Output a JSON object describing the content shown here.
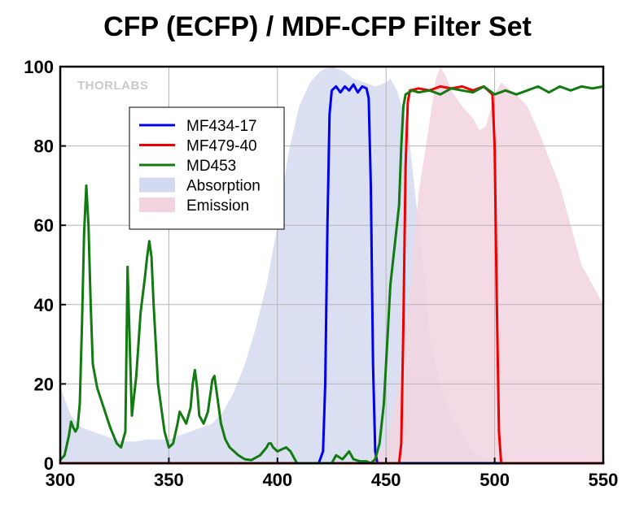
{
  "chart_data": {
    "type": "area",
    "title": "CFP (ECFP) / MDF-CFP Filter Set",
    "watermark": "THORLABS",
    "xlabel": "",
    "ylabel": "",
    "xlim": [
      300,
      550
    ],
    "ylim": [
      0,
      100
    ],
    "x_ticks": [
      300,
      350,
      400,
      450,
      500,
      550
    ],
    "y_ticks": [
      0,
      20,
      40,
      60,
      80,
      100
    ],
    "grid": true,
    "legend_position": "upper-left",
    "series": [
      {
        "name": "MF434-17",
        "kind": "line",
        "color": "#0000ee",
        "points": [
          [
            300,
            0
          ],
          [
            419,
            0
          ],
          [
            421,
            3
          ],
          [
            422,
            20
          ],
          [
            423,
            60
          ],
          [
            424,
            88
          ],
          [
            425,
            94
          ],
          [
            427,
            95
          ],
          [
            429,
            93.5
          ],
          [
            431,
            95
          ],
          [
            433,
            94
          ],
          [
            435,
            95.5
          ],
          [
            437,
            93.5
          ],
          [
            439,
            95
          ],
          [
            441,
            94.5
          ],
          [
            442,
            92
          ],
          [
            443,
            70
          ],
          [
            444,
            25
          ],
          [
            445,
            3
          ],
          [
            446,
            0
          ],
          [
            550,
            0
          ]
        ]
      },
      {
        "name": "MF479-40",
        "kind": "line",
        "color": "#ee0000",
        "points": [
          [
            300,
            0
          ],
          [
            456,
            0
          ],
          [
            457,
            5
          ],
          [
            458,
            35
          ],
          [
            459,
            75
          ],
          [
            460,
            91
          ],
          [
            461,
            94
          ],
          [
            465,
            94.5
          ],
          [
            470,
            94
          ],
          [
            475,
            95
          ],
          [
            480,
            94.5
          ],
          [
            485,
            95
          ],
          [
            490,
            94
          ],
          [
            495,
            95
          ],
          [
            499,
            93
          ],
          [
            500,
            80
          ],
          [
            501,
            40
          ],
          [
            502,
            8
          ],
          [
            503,
            0
          ],
          [
            550,
            0
          ]
        ]
      },
      {
        "name": "MD453",
        "kind": "line",
        "color": "#117a11",
        "points": [
          [
            300,
            0.8
          ],
          [
            302,
            2
          ],
          [
            304,
            7
          ],
          [
            305,
            10.5
          ],
          [
            306,
            9
          ],
          [
            307,
            8
          ],
          [
            308,
            9
          ],
          [
            309,
            15
          ],
          [
            310,
            35
          ],
          [
            311,
            58
          ],
          [
            312,
            70
          ],
          [
            313,
            60
          ],
          [
            314,
            40
          ],
          [
            315,
            25
          ],
          [
            317,
            19
          ],
          [
            320,
            14
          ],
          [
            323,
            9
          ],
          [
            326,
            5
          ],
          [
            328,
            4
          ],
          [
            330,
            8
          ],
          [
            331,
            49.5
          ],
          [
            332,
            30
          ],
          [
            333,
            12
          ],
          [
            335,
            22
          ],
          [
            337,
            38
          ],
          [
            339,
            47
          ],
          [
            340,
            52
          ],
          [
            341,
            56
          ],
          [
            342,
            52
          ],
          [
            343,
            40
          ],
          [
            345,
            20
          ],
          [
            348,
            8
          ],
          [
            350,
            4
          ],
          [
            352,
            5
          ],
          [
            354,
            10
          ],
          [
            355,
            13
          ],
          [
            356,
            12
          ],
          [
            358,
            10
          ],
          [
            360,
            14
          ],
          [
            361,
            20
          ],
          [
            362,
            23.5
          ],
          [
            363,
            19
          ],
          [
            364,
            12
          ],
          [
            366,
            10
          ],
          [
            368,
            13
          ],
          [
            370,
            21
          ],
          [
            371,
            22
          ],
          [
            372,
            18
          ],
          [
            374,
            10
          ],
          [
            376,
            6
          ],
          [
            378,
            4
          ],
          [
            382,
            2
          ],
          [
            385,
            1
          ],
          [
            388,
            0.8
          ],
          [
            392,
            2
          ],
          [
            395,
            4
          ],
          [
            396,
            5
          ],
          [
            397,
            5
          ],
          [
            398,
            4
          ],
          [
            400,
            3
          ],
          [
            402,
            3.5
          ],
          [
            404,
            4
          ],
          [
            406,
            3
          ],
          [
            408,
            1
          ],
          [
            409,
            0
          ],
          [
            425,
            0
          ],
          [
            427,
            2
          ],
          [
            430,
            1
          ],
          [
            433,
            3
          ],
          [
            435,
            1
          ],
          [
            438,
            0.5
          ],
          [
            441,
            0.5
          ],
          [
            443,
            0
          ],
          [
            445,
            1
          ],
          [
            447,
            5
          ],
          [
            449,
            15
          ],
          [
            451,
            35
          ],
          [
            452,
            45
          ],
          [
            453,
            50
          ],
          [
            454,
            55
          ],
          [
            456,
            65
          ],
          [
            457,
            80
          ],
          [
            458,
            90
          ],
          [
            459,
            93
          ],
          [
            462,
            94
          ],
          [
            465,
            93.5
          ],
          [
            470,
            94
          ],
          [
            475,
            93
          ],
          [
            480,
            94.5
          ],
          [
            485,
            94
          ],
          [
            490,
            93.5
          ],
          [
            495,
            95
          ],
          [
            500,
            93
          ],
          [
            505,
            94
          ],
          [
            510,
            93
          ],
          [
            515,
            94
          ],
          [
            520,
            95
          ],
          [
            525,
            93.5
          ],
          [
            530,
            95
          ],
          [
            535,
            94
          ],
          [
            540,
            95
          ],
          [
            545,
            94.5
          ],
          [
            550,
            95
          ]
        ]
      },
      {
        "name": "Absorption",
        "kind": "area",
        "color": "#d3daf0",
        "points": [
          [
            300,
            19
          ],
          [
            305,
            12
          ],
          [
            310,
            9
          ],
          [
            315,
            8
          ],
          [
            320,
            7
          ],
          [
            325,
            6
          ],
          [
            330,
            5.5
          ],
          [
            335,
            5.5
          ],
          [
            340,
            6
          ],
          [
            345,
            6
          ],
          [
            350,
            6
          ],
          [
            355,
            7
          ],
          [
            360,
            8
          ],
          [
            365,
            9
          ],
          [
            370,
            10
          ],
          [
            375,
            13
          ],
          [
            380,
            18
          ],
          [
            385,
            25
          ],
          [
            390,
            34
          ],
          [
            395,
            45
          ],
          [
            400,
            60
          ],
          [
            405,
            78
          ],
          [
            410,
            90
          ],
          [
            415,
            96
          ],
          [
            420,
            99
          ],
          [
            425,
            100
          ],
          [
            430,
            99
          ],
          [
            435,
            97
          ],
          [
            440,
            96
          ],
          [
            445,
            95
          ],
          [
            450,
            96
          ],
          [
            452,
            97
          ],
          [
            455,
            94
          ],
          [
            460,
            85
          ],
          [
            465,
            60
          ],
          [
            468,
            45
          ],
          [
            470,
            32
          ],
          [
            475,
            20
          ],
          [
            480,
            12
          ],
          [
            485,
            7
          ],
          [
            490,
            3
          ],
          [
            495,
            1
          ],
          [
            500,
            0
          ]
        ]
      },
      {
        "name": "Emission",
        "kind": "area",
        "color": "#f2d3e0",
        "points": [
          [
            440,
            0
          ],
          [
            450,
            4
          ],
          [
            455,
            18
          ],
          [
            460,
            38
          ],
          [
            465,
            68
          ],
          [
            470,
            86
          ],
          [
            473,
            97
          ],
          [
            475,
            100
          ],
          [
            478,
            97
          ],
          [
            480,
            94
          ],
          [
            485,
            90
          ],
          [
            490,
            87
          ],
          [
            493,
            84
          ],
          [
            496,
            85
          ],
          [
            500,
            93
          ],
          [
            503,
            96
          ],
          [
            505,
            95
          ],
          [
            510,
            93
          ],
          [
            515,
            90
          ],
          [
            520,
            84
          ],
          [
            525,
            77
          ],
          [
            530,
            70
          ],
          [
            535,
            60
          ],
          [
            540,
            50
          ],
          [
            545,
            45
          ],
          [
            550,
            40
          ]
        ]
      }
    ]
  }
}
